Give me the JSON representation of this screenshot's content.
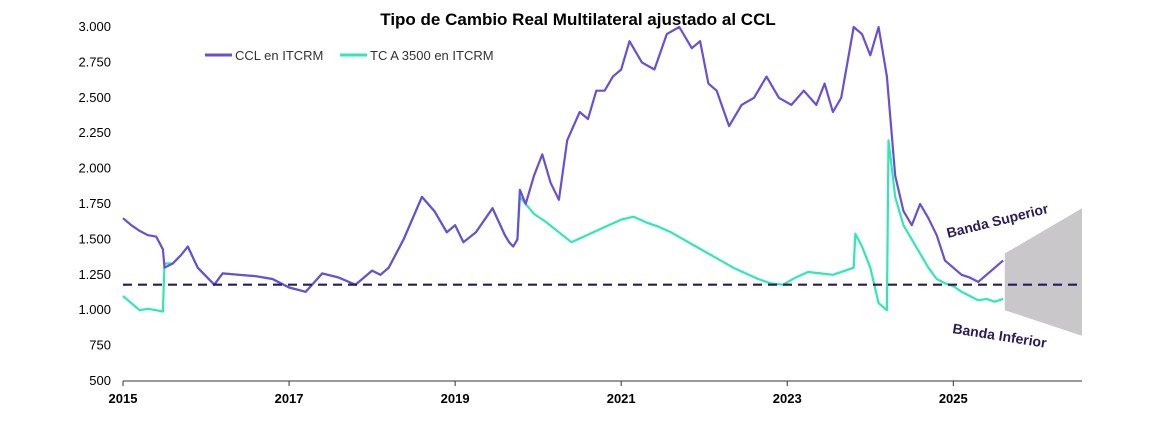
{
  "chart_data": {
    "type": "line",
    "title": "Tipo de Cambio Real Multilateral ajustado al CCL",
    "xlabel": "",
    "ylabel": "",
    "xlim": [
      2015.0,
      2026.55
    ],
    "ylim": [
      500,
      3000
    ],
    "x_ticks": [
      2015,
      2017,
      2019,
      2021,
      2023,
      2025
    ],
    "x_tick_labels": [
      "2015",
      "2017",
      "2019",
      "2021",
      "2023",
      "2025"
    ],
    "y_ticks": [
      500,
      750,
      1000,
      1250,
      1500,
      1750,
      2000,
      2250,
      2500,
      2750,
      3000
    ],
    "y_tick_labels": [
      "500",
      "750",
      "1.000",
      "1.250",
      "1.500",
      "1.750",
      "2.000",
      "2.250",
      "2.500",
      "2.750",
      "3.000"
    ],
    "legend_position": "top-left",
    "colors": {
      "ccl": "#6a4fd4",
      "tc3500": "#2fe8b4",
      "reference": "#2a1b5c",
      "band": "#c9c7c9"
    },
    "series": [
      {
        "name": "CCL en ITCRM",
        "color": "#6a4fd4",
        "points": [
          [
            2015.0,
            1650
          ],
          [
            2015.1,
            1600
          ],
          [
            2015.2,
            1560
          ],
          [
            2015.3,
            1530
          ],
          [
            2015.4,
            1520
          ],
          [
            2015.48,
            1430
          ],
          [
            2015.5,
            1300
          ],
          [
            2015.6,
            1330
          ],
          [
            2015.7,
            1390
          ],
          [
            2015.78,
            1450
          ],
          [
            2015.9,
            1300
          ],
          [
            2016.0,
            1240
          ],
          [
            2016.1,
            1180
          ],
          [
            2016.2,
            1260
          ],
          [
            2016.4,
            1250
          ],
          [
            2016.6,
            1240
          ],
          [
            2016.8,
            1220
          ],
          [
            2017.0,
            1160
          ],
          [
            2017.2,
            1130
          ],
          [
            2017.4,
            1260
          ],
          [
            2017.6,
            1230
          ],
          [
            2017.8,
            1180
          ],
          [
            2018.0,
            1280
          ],
          [
            2018.1,
            1250
          ],
          [
            2018.2,
            1300
          ],
          [
            2018.38,
            1500
          ],
          [
            2018.6,
            1800
          ],
          [
            2018.75,
            1700
          ],
          [
            2018.9,
            1550
          ],
          [
            2019.0,
            1600
          ],
          [
            2019.1,
            1480
          ],
          [
            2019.25,
            1550
          ],
          [
            2019.45,
            1720
          ],
          [
            2019.6,
            1530
          ],
          [
            2019.65,
            1480
          ],
          [
            2019.7,
            1450
          ],
          [
            2019.75,
            1500
          ],
          [
            2019.78,
            1850
          ],
          [
            2019.85,
            1750
          ],
          [
            2019.95,
            1950
          ],
          [
            2020.05,
            2100
          ],
          [
            2020.15,
            1900
          ],
          [
            2020.25,
            1780
          ],
          [
            2020.35,
            2200
          ],
          [
            2020.5,
            2400
          ],
          [
            2020.6,
            2350
          ],
          [
            2020.7,
            2550
          ],
          [
            2020.8,
            2550
          ],
          [
            2020.9,
            2650
          ],
          [
            2021.0,
            2700
          ],
          [
            2021.1,
            2900
          ],
          [
            2021.25,
            2750
          ],
          [
            2021.4,
            2700
          ],
          [
            2021.55,
            2950
          ],
          [
            2021.7,
            3000
          ],
          [
            2021.85,
            2850
          ],
          [
            2021.95,
            2900
          ],
          [
            2022.05,
            2600
          ],
          [
            2022.15,
            2550
          ],
          [
            2022.3,
            2300
          ],
          [
            2022.45,
            2450
          ],
          [
            2022.6,
            2500
          ],
          [
            2022.75,
            2650
          ],
          [
            2022.9,
            2500
          ],
          [
            2023.05,
            2450
          ],
          [
            2023.2,
            2550
          ],
          [
            2023.35,
            2450
          ],
          [
            2023.45,
            2600
          ],
          [
            2023.55,
            2400
          ],
          [
            2023.65,
            2500
          ],
          [
            2023.8,
            3000
          ],
          [
            2023.9,
            2950
          ],
          [
            2024.0,
            2800
          ],
          [
            2024.1,
            3000
          ],
          [
            2024.2,
            2650
          ],
          [
            2024.3,
            1950
          ],
          [
            2024.4,
            1700
          ],
          [
            2024.5,
            1600
          ],
          [
            2024.6,
            1750
          ],
          [
            2024.7,
            1650
          ],
          [
            2024.8,
            1530
          ],
          [
            2024.9,
            1350
          ],
          [
            2025.0,
            1300
          ],
          [
            2025.1,
            1250
          ],
          [
            2025.2,
            1230
          ],
          [
            2025.3,
            1200
          ],
          [
            2025.4,
            1250
          ],
          [
            2025.5,
            1300
          ],
          [
            2025.6,
            1350
          ]
        ]
      },
      {
        "name": "TC A 3500 en ITCRM",
        "color": "#2fe8b4",
        "points": [
          [
            2015.0,
            1100
          ],
          [
            2015.1,
            1050
          ],
          [
            2015.2,
            1000
          ],
          [
            2015.3,
            1010
          ],
          [
            2015.4,
            1000
          ],
          [
            2015.48,
            990
          ],
          [
            2015.5,
            1330
          ],
          [
            2015.6,
            1330
          ],
          [
            2015.7,
            1390
          ],
          [
            2015.78,
            1450
          ],
          [
            2015.9,
            1300
          ],
          [
            2016.0,
            1240
          ],
          [
            2016.1,
            1180
          ],
          [
            2016.2,
            1260
          ],
          [
            2016.4,
            1250
          ],
          [
            2016.6,
            1240
          ],
          [
            2016.8,
            1220
          ],
          [
            2017.0,
            1160
          ],
          [
            2017.2,
            1130
          ],
          [
            2017.4,
            1260
          ],
          [
            2017.6,
            1230
          ],
          [
            2017.8,
            1180
          ],
          [
            2018.0,
            1280
          ],
          [
            2018.1,
            1250
          ],
          [
            2018.2,
            1300
          ],
          [
            2018.38,
            1500
          ],
          [
            2018.6,
            1800
          ],
          [
            2018.75,
            1700
          ],
          [
            2018.9,
            1550
          ],
          [
            2019.0,
            1600
          ],
          [
            2019.1,
            1480
          ],
          [
            2019.25,
            1550
          ],
          [
            2019.45,
            1720
          ],
          [
            2019.6,
            1530
          ],
          [
            2019.65,
            1480
          ],
          [
            2019.7,
            1450
          ],
          [
            2019.75,
            1500
          ],
          [
            2019.78,
            1800
          ],
          [
            2019.85,
            1750
          ],
          [
            2019.95,
            1680
          ],
          [
            2020.1,
            1620
          ],
          [
            2020.25,
            1550
          ],
          [
            2020.4,
            1480
          ],
          [
            2020.55,
            1520
          ],
          [
            2020.7,
            1560
          ],
          [
            2020.85,
            1600
          ],
          [
            2021.0,
            1640
          ],
          [
            2021.15,
            1660
          ],
          [
            2021.3,
            1620
          ],
          [
            2021.45,
            1590
          ],
          [
            2021.6,
            1550
          ],
          [
            2021.75,
            1500
          ],
          [
            2021.9,
            1450
          ],
          [
            2022.05,
            1400
          ],
          [
            2022.2,
            1350
          ],
          [
            2022.35,
            1300
          ],
          [
            2022.5,
            1260
          ],
          [
            2022.65,
            1220
          ],
          [
            2022.8,
            1190
          ],
          [
            2022.95,
            1180
          ],
          [
            2023.1,
            1230
          ],
          [
            2023.25,
            1270
          ],
          [
            2023.4,
            1260
          ],
          [
            2023.55,
            1250
          ],
          [
            2023.7,
            1280
          ],
          [
            2023.8,
            1300
          ],
          [
            2023.82,
            1540
          ],
          [
            2023.9,
            1450
          ],
          [
            2024.0,
            1300
          ],
          [
            2024.1,
            1050
          ],
          [
            2024.2,
            1000
          ],
          [
            2024.22,
            2200
          ],
          [
            2024.3,
            1800
          ],
          [
            2024.4,
            1600
          ],
          [
            2024.5,
            1500
          ],
          [
            2024.6,
            1400
          ],
          [
            2024.7,
            1300
          ],
          [
            2024.8,
            1220
          ],
          [
            2024.9,
            1190
          ],
          [
            2025.0,
            1170
          ],
          [
            2025.1,
            1130
          ],
          [
            2025.2,
            1100
          ],
          [
            2025.3,
            1070
          ],
          [
            2025.4,
            1080
          ],
          [
            2025.5,
            1060
          ],
          [
            2025.6,
            1080
          ]
        ]
      }
    ],
    "reference_line": {
      "y": 1180,
      "style": "dashed"
    },
    "band": {
      "x_start": 2025.62,
      "x_end": 2026.55,
      "upper_start": 1400,
      "upper_end": 1720,
      "lower_start": 1000,
      "lower_end": 820
    },
    "annotations": [
      "Banda Superior",
      "Banda Inferior"
    ]
  }
}
